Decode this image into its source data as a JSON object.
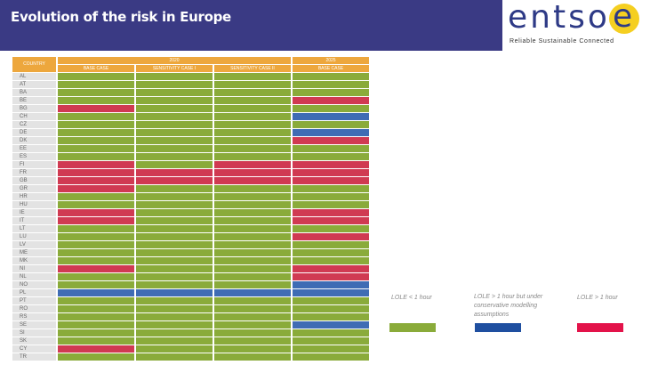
{
  "title": "Evolution of the risk in Europe",
  "logo": {
    "word": "entso",
    "letter": "e",
    "tagline": "Reliable Sustainable Connected",
    "colors": {
      "text": "#2e3a86",
      "circle": "#f5cf21"
    }
  },
  "colors": {
    "green": "#8aab3a",
    "red": "#d03a52",
    "blue": "#3f6cb4",
    "header": "#eda73d",
    "banner": "#3a3a84"
  },
  "table": {
    "country_header": "COUNTRY",
    "year_2020": "2020",
    "year_2025": "2025",
    "columns": [
      "BASE CASE",
      "SENSITIVITY CASE I",
      "SENSITIVITY CASE II",
      "BASE CASE"
    ],
    "rows": [
      {
        "country": "AL",
        "status": [
          "g",
          "g",
          "g",
          "g"
        ]
      },
      {
        "country": "AT",
        "status": [
          "g",
          "g",
          "g",
          "g"
        ]
      },
      {
        "country": "BA",
        "status": [
          "g",
          "g",
          "g",
          "g"
        ]
      },
      {
        "country": "BE",
        "status": [
          "g",
          "g",
          "g",
          "r"
        ]
      },
      {
        "country": "BG",
        "status": [
          "r",
          "g",
          "g",
          "g"
        ]
      },
      {
        "country": "CH",
        "status": [
          "g",
          "g",
          "g",
          "b"
        ]
      },
      {
        "country": "CZ",
        "status": [
          "g",
          "g",
          "g",
          "g"
        ]
      },
      {
        "country": "DE",
        "status": [
          "g",
          "g",
          "g",
          "b"
        ]
      },
      {
        "country": "DK",
        "status": [
          "g",
          "g",
          "g",
          "r"
        ]
      },
      {
        "country": "EE",
        "status": [
          "g",
          "g",
          "g",
          "g"
        ]
      },
      {
        "country": "ES",
        "status": [
          "g",
          "g",
          "g",
          "g"
        ]
      },
      {
        "country": "FI",
        "status": [
          "r",
          "g",
          "r",
          "r"
        ]
      },
      {
        "country": "FR",
        "status": [
          "r",
          "r",
          "r",
          "r"
        ]
      },
      {
        "country": "GB",
        "status": [
          "r",
          "r",
          "r",
          "r"
        ]
      },
      {
        "country": "GR",
        "status": [
          "r",
          "g",
          "g",
          "g"
        ]
      },
      {
        "country": "HR",
        "status": [
          "g",
          "g",
          "g",
          "g"
        ]
      },
      {
        "country": "HU",
        "status": [
          "g",
          "g",
          "g",
          "g"
        ]
      },
      {
        "country": "IE",
        "status": [
          "r",
          "g",
          "g",
          "r"
        ]
      },
      {
        "country": "IT",
        "status": [
          "r",
          "g",
          "g",
          "r"
        ]
      },
      {
        "country": "LT",
        "status": [
          "g",
          "g",
          "g",
          "g"
        ]
      },
      {
        "country": "LU",
        "status": [
          "g",
          "g",
          "g",
          "r"
        ]
      },
      {
        "country": "LV",
        "status": [
          "g",
          "g",
          "g",
          "g"
        ]
      },
      {
        "country": "ME",
        "status": [
          "g",
          "g",
          "g",
          "g"
        ]
      },
      {
        "country": "MK",
        "status": [
          "g",
          "g",
          "g",
          "g"
        ]
      },
      {
        "country": "NI",
        "status": [
          "r",
          "g",
          "g",
          "r"
        ]
      },
      {
        "country": "NL",
        "status": [
          "g",
          "g",
          "g",
          "r"
        ]
      },
      {
        "country": "NO",
        "status": [
          "g",
          "g",
          "g",
          "b"
        ]
      },
      {
        "country": "PL",
        "status": [
          "b",
          "b",
          "b",
          "b"
        ]
      },
      {
        "country": "PT",
        "status": [
          "g",
          "g",
          "g",
          "g"
        ]
      },
      {
        "country": "RO",
        "status": [
          "g",
          "g",
          "g",
          "g"
        ]
      },
      {
        "country": "RS",
        "status": [
          "g",
          "g",
          "g",
          "g"
        ]
      },
      {
        "country": "SE",
        "status": [
          "g",
          "g",
          "g",
          "b"
        ]
      },
      {
        "country": "SI",
        "status": [
          "g",
          "g",
          "g",
          "g"
        ]
      },
      {
        "country": "SK",
        "status": [
          "g",
          "g",
          "g",
          "g"
        ]
      },
      {
        "country": "CY",
        "status": [
          "r",
          "g",
          "g",
          "g"
        ]
      },
      {
        "country": "TR",
        "status": [
          "g",
          "g",
          "g",
          "g"
        ]
      }
    ]
  },
  "legend": {
    "items": [
      {
        "label": "LOLE < 1 hour",
        "color": "#8aab3a"
      },
      {
        "label": "LOLE > 1 hour but under conservative modelling assumptions",
        "color": "#1f4fa0"
      },
      {
        "label": "LOLE > 1 hour",
        "color": "#e3134a"
      }
    ]
  }
}
